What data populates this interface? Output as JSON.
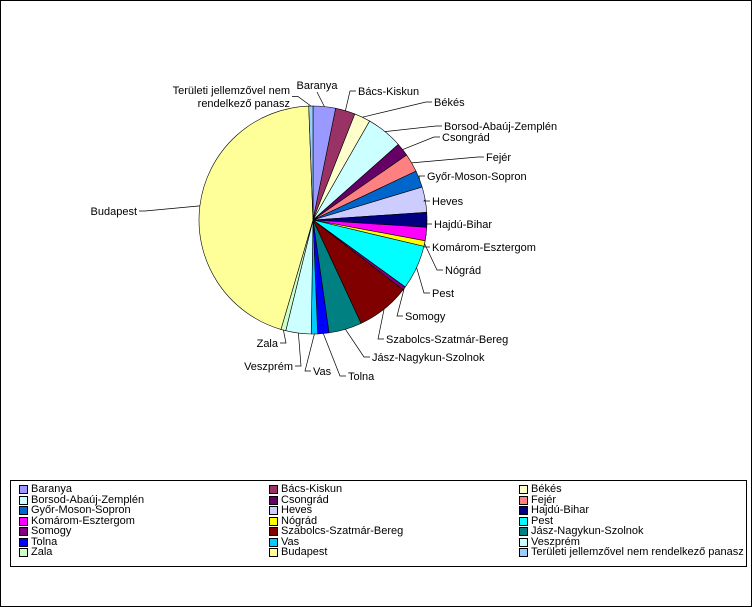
{
  "chart_data": {
    "type": "pie",
    "title": "",
    "categories": [
      "Baranya",
      "Bács-Kiskun",
      "Békés",
      "Borsod-Abaúj-Zemplén",
      "Csongrád",
      "Fejér",
      "Győr-Moson-Sopron",
      "Heves",
      "Hajdú-Bihar",
      "Komárom-Esztergom",
      "Nógrád",
      "Pest",
      "Somogy",
      "Szabolcs-Szatmár-Bereg",
      "Jász-Nagykun-Szolnok",
      "Tolna",
      "Vas",
      "Veszprém",
      "Zala",
      "Budapest",
      "Területi jellemzővel nem rendelkező panasz"
    ],
    "values": [
      3.2,
      2.8,
      2.3,
      5.2,
      1.9,
      2.6,
      2.4,
      3.6,
      2.1,
      1.9,
      0.8,
      6.3,
      0.5,
      7.6,
      4.7,
      1.6,
      0.9,
      3.6,
      0.7,
      45.0,
      0.6
    ],
    "colors": [
      "#9999ff",
      "#993366",
      "#ffffcc",
      "#ccffff",
      "#660066",
      "#ff8080",
      "#0066cc",
      "#ccccff",
      "#000080",
      "#ff00ff",
      "#ffff00",
      "#00ffff",
      "#800080",
      "#800000",
      "#008080",
      "#0000ff",
      "#00ccff",
      "#ccffff",
      "#ccffcc",
      "#ffff99",
      "#99ccff"
    ],
    "data_labels": [
      "Baranya",
      "Bács-Kiskun",
      "Békés",
      "Borsod-Abaúj-Zemplén",
      "Csongrád",
      "Fejér",
      "Győr-Moson-Sopron",
      "Heves",
      "Hajdú-Bihar",
      "Komárom-Esztergom",
      "Nógrád",
      "Pest",
      "Somogy",
      "Szabolcs-Szatmár-Bereg",
      "Jász-Nagykun-Szolnok",
      "Tolna",
      "Vas",
      "Veszprém",
      "Zala",
      "Budapest",
      [
        "Területi jellemzővel nem",
        "rendelkező panasz"
      ]
    ],
    "legend_position": "bottom",
    "legend_columns": 3
  }
}
